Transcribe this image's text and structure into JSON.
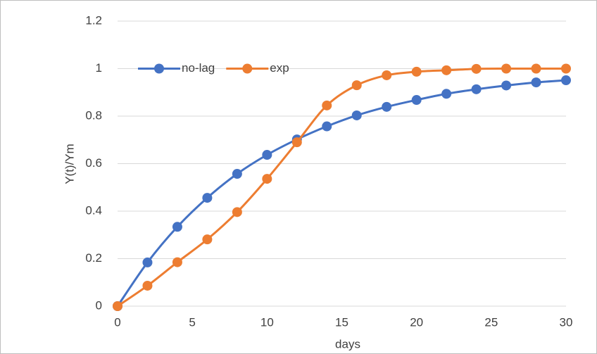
{
  "chart_data": {
    "type": "line",
    "x_label": "days",
    "y_label": "Y(t)/Ym",
    "x": [
      0,
      2,
      4,
      6,
      8,
      10,
      12,
      14,
      16,
      18,
      20,
      22,
      24,
      26,
      28,
      30
    ],
    "series": [
      {
        "name": "no-lag",
        "color": "#4472c4",
        "values": [
          0,
          0.184,
          0.334,
          0.456,
          0.557,
          0.637,
          0.702,
          0.757,
          0.803,
          0.839,
          0.868,
          0.894,
          0.913,
          0.929,
          0.942,
          0.951
        ]
      },
      {
        "name": "exp",
        "color": "#ed7d31",
        "values": [
          0,
          0.086,
          0.185,
          0.281,
          0.396,
          0.536,
          0.69,
          0.845,
          0.93,
          0.972,
          0.987,
          0.993,
          0.999,
          1,
          1,
          1
        ]
      }
    ],
    "xlim": [
      0,
      30
    ],
    "xticks": [
      0,
      5,
      10,
      15,
      20,
      25,
      30
    ],
    "ylim": [
      0,
      1.2
    ],
    "yticks": [
      0,
      0.2,
      0.4,
      0.6,
      0.8,
      1,
      1.2
    ],
    "grid": true,
    "legend": "upper-left",
    "smooth": true
  }
}
